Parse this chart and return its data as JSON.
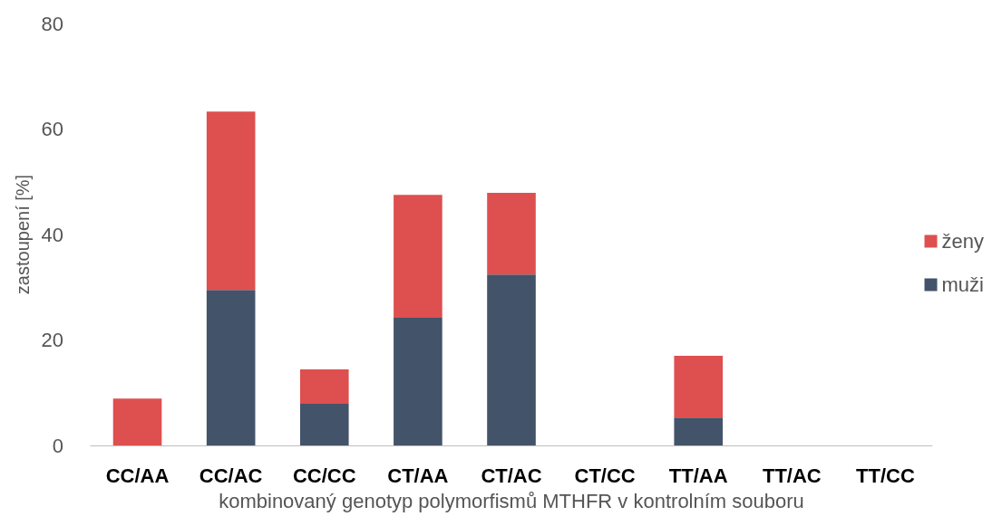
{
  "chart_data": {
    "type": "bar",
    "stacked": true,
    "xlabel": "kombinovaný genotyp polymorfismů MTHFR v kontrolním souboru",
    "ylabel": "zastoupení [%]",
    "categories": [
      "CC/AA",
      "CC/AC",
      "CC/CC",
      "CT/AA",
      "CT/AC",
      "CT/CC",
      "TT/AA",
      "TT/AC",
      "TT/CC"
    ],
    "series": [
      {
        "name": "muži",
        "color": "#435369",
        "values": [
          0,
          29.5,
          7.9,
          24.2,
          32.4,
          0,
          5.3,
          0,
          0
        ]
      },
      {
        "name": "ženy",
        "color": "#de4f4f",
        "values": [
          8.9,
          33.8,
          6.5,
          23.3,
          15.5,
          0,
          11.7,
          0,
          0
        ]
      }
    ],
    "ylim": [
      0,
      80
    ],
    "yticks": [
      0,
      20,
      40,
      60,
      80
    ],
    "grid": false,
    "legend": "right"
  }
}
